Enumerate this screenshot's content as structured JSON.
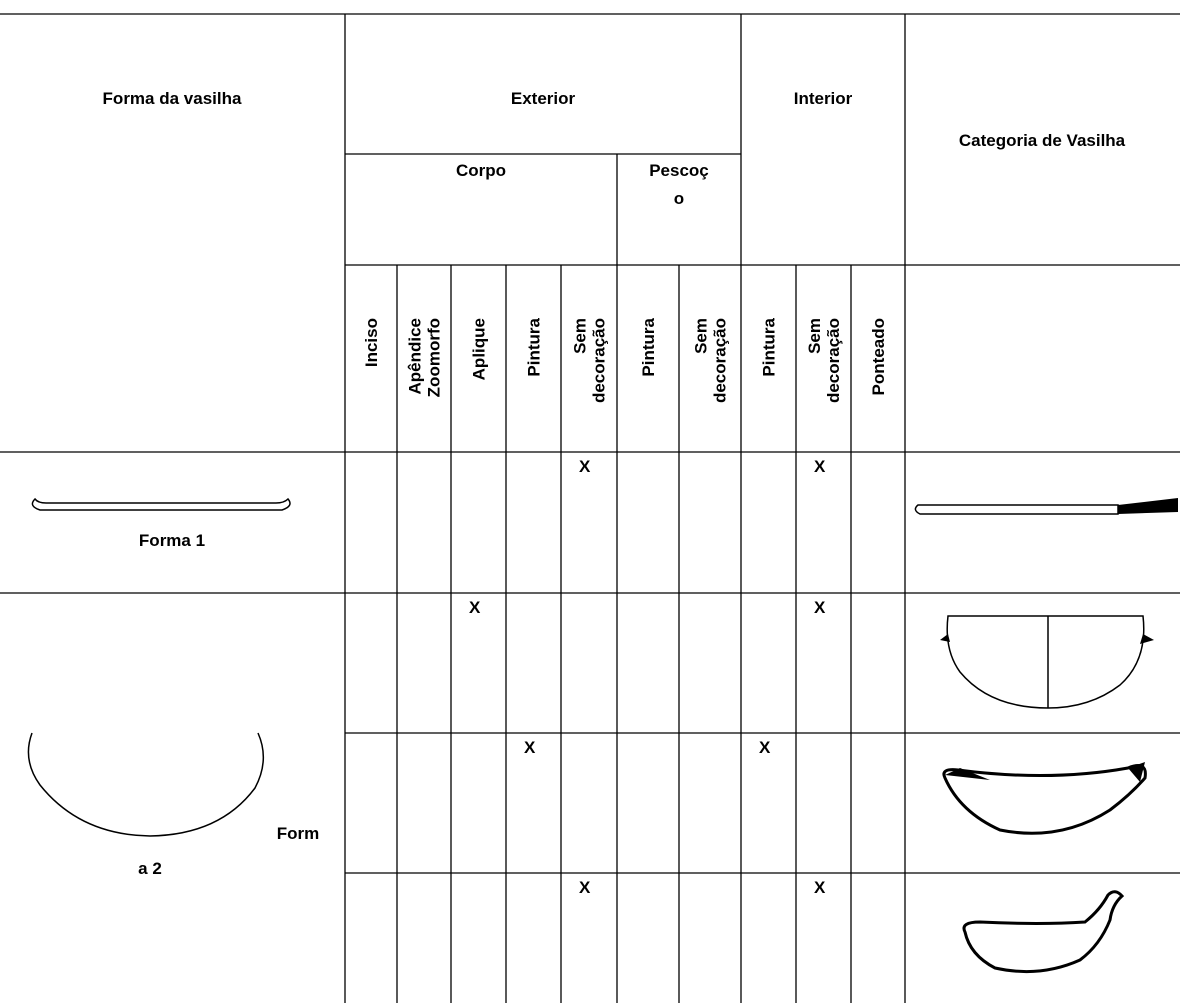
{
  "header": {
    "form": "Forma da vasilha",
    "exterior": "Exterior",
    "interior": "Interior",
    "category": "Categoria de Vasilha",
    "body": "Corpo",
    "neck": [
      "Pescoç",
      "o"
    ]
  },
  "columns": [
    [
      "Inciso"
    ],
    [
      "Apêndice",
      "Zoomorfo"
    ],
    [
      "Aplique"
    ],
    [
      "Pintura"
    ],
    [
      "Sem",
      "decoração"
    ],
    [
      "Pintura"
    ],
    [
      "Sem",
      "decoração"
    ],
    [
      "Pintura"
    ],
    [
      "Sem",
      "decoração"
    ],
    [
      "Ponteado"
    ]
  ],
  "forms": [
    {
      "label": [
        "Forma 1"
      ]
    },
    {
      "label": [
        "Form",
        "a 2"
      ]
    }
  ],
  "rows": [
    [
      null,
      null,
      null,
      null,
      "X",
      null,
      null,
      null,
      "X",
      null
    ],
    [
      null,
      null,
      "X",
      null,
      null,
      null,
      null,
      null,
      "X",
      null
    ],
    [
      null,
      null,
      null,
      "X",
      null,
      null,
      null,
      "X",
      null,
      null
    ],
    [
      null,
      null,
      null,
      null,
      "X",
      null,
      null,
      null,
      "X",
      null
    ]
  ]
}
